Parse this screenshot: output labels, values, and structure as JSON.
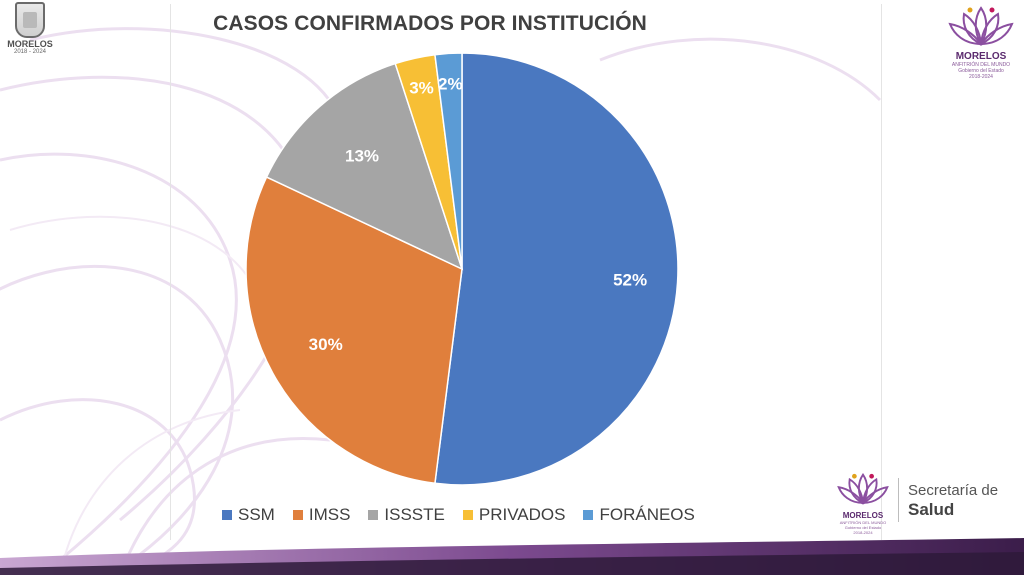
{
  "chart_data": {
    "type": "pie",
    "title": "CASOS CONFIRMADOS POR INSTITUCIÓN",
    "slices": [
      {
        "name": "SSM",
        "value": 52,
        "label": "52%",
        "color": "#4a78c0"
      },
      {
        "name": "IMSS",
        "value": 30,
        "label": "30%",
        "color": "#e07f3c"
      },
      {
        "name": "ISSSTE",
        "value": 13,
        "label": "13%",
        "color": "#a5a5a5"
      },
      {
        "name": "PRIVADOS",
        "value": 3,
        "label": "3%",
        "color": "#f7bf35"
      },
      {
        "name": "FORÁNEOS",
        "value": 2,
        "label": "2%",
        "color": "#5b9bd5"
      }
    ],
    "legend_position": "bottom"
  },
  "header": {
    "state_logo_name": "MORELOS",
    "state_logo_years": "2018 - 2024"
  },
  "brand": {
    "name": "MORELOS",
    "tagline": "ANFITRIÓN DEL MUNDO",
    "subtitle": "Gobierno del Estado",
    "years": "2018-2024"
  },
  "footer": {
    "dept_line1": "Secretaría de",
    "dept_line2": "Salud"
  },
  "colors": {
    "accent_purple": "#7a3f8f",
    "band_dark": "#3a1f4a"
  }
}
